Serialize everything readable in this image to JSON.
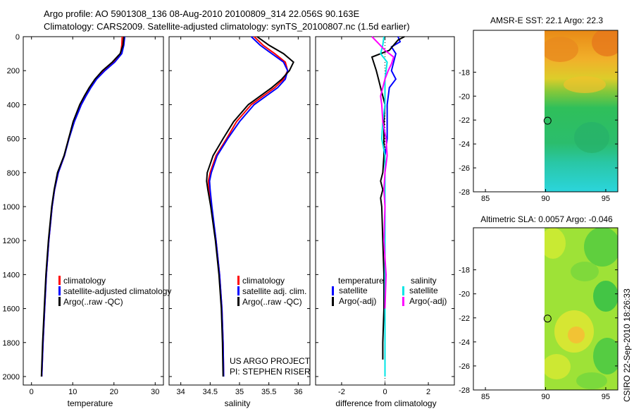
{
  "header": {
    "line1": "Argo profile: AO 5901308_136 08-Aug-2010 20100809_314 22.056S 90.163E",
    "line2": "Climatology: CARS2009. Satellite-adjusted climatology: synTS_20100807.nc (1.5d earlier)"
  },
  "credit": {
    "project": "US ARGO PROJECT",
    "pi": "PI: STEPHEN RISER",
    "stamp": "CSIRO 22-Sep-2010 18:26:33"
  },
  "colors": {
    "climatology": "#ff0000",
    "satellite": "#0000ff",
    "argo": "#000000",
    "sat_sal": "#00e5e5",
    "argo_sal": "#ff00ff"
  },
  "chart_data": [
    {
      "type": "line",
      "name": "temperature-profile",
      "xlabel": "temperature",
      "xlim": [
        -2,
        32
      ],
      "ylim": [
        2050,
        0
      ],
      "xticks": [
        0,
        10,
        20,
        30
      ],
      "yticks": [
        0,
        200,
        400,
        600,
        800,
        1000,
        1200,
        1400,
        1600,
        1800,
        2000
      ],
      "ytick_labels": [
        "0",
        "200",
        "400",
        "600",
        "800",
        "1000",
        "1200",
        "1400",
        "1600",
        "1800",
        "2000"
      ],
      "legend": [
        "climatology",
        "satellite-adjusted climatology",
        "Argo(..raw -QC)"
      ],
      "legend_colors": [
        "#ff0000",
        "#0000ff",
        "#000000"
      ],
      "series": [
        {
          "name": "climatology",
          "color": "#ff0000",
          "depth": [
            0,
            50,
            100,
            150,
            200,
            250,
            300,
            350,
            400,
            500,
            600,
            700,
            800,
            900,
            1000,
            1200,
            1400,
            1600,
            1800,
            2000
          ],
          "values": [
            22.0,
            21.9,
            21.6,
            20.0,
            17.5,
            15.5,
            14.2,
            13.0,
            12.0,
            10.3,
            9.0,
            8.0,
            6.5,
            5.6,
            5.0,
            4.2,
            3.6,
            3.2,
            2.8,
            2.5
          ]
        },
        {
          "name": "satellite-adjusted climatology",
          "color": "#0000ff",
          "depth": [
            0,
            50,
            100,
            150,
            200,
            250,
            300,
            350,
            400,
            500,
            600,
            700,
            800,
            900,
            1000,
            1200,
            1400,
            1600,
            1800,
            2000
          ],
          "values": [
            22.6,
            22.4,
            21.9,
            20.2,
            17.8,
            15.8,
            14.4,
            13.2,
            12.1,
            10.4,
            9.1,
            8.0,
            6.5,
            5.6,
            5.0,
            4.2,
            3.6,
            3.2,
            2.8,
            2.5
          ]
        },
        {
          "name": "Argo(..raw -QC)",
          "color": "#000000",
          "depth": [
            0,
            50,
            100,
            150,
            200,
            250,
            300,
            350,
            400,
            500,
            600,
            700,
            800,
            900,
            1000,
            1200,
            1400,
            1600,
            1800,
            2000
          ],
          "values": [
            22.4,
            22.2,
            21.5,
            19.6,
            17.2,
            15.4,
            14.0,
            12.8,
            11.7,
            10.1,
            9.0,
            7.9,
            6.3,
            5.5,
            4.9,
            4.1,
            3.5,
            3.1,
            2.7,
            2.4
          ]
        }
      ]
    },
    {
      "type": "line",
      "name": "salinity-profile",
      "xlabel": "salinity",
      "xlim": [
        33.8,
        36.2
      ],
      "ylim": [
        2050,
        0
      ],
      "xticks": [
        34,
        34.5,
        35,
        35.5,
        36
      ],
      "xtick_labels": [
        "34",
        "34.5",
        "35",
        "35.5",
        "36"
      ],
      "legend": [
        "climatology",
        "satellite adj. clim.",
        "Argo(..raw -QC)"
      ],
      "legend_colors": [
        "#ff0000",
        "#0000ff",
        "#000000"
      ],
      "series": [
        {
          "name": "climatology",
          "color": "#ff0000",
          "depth": [
            0,
            50,
            100,
            150,
            200,
            250,
            300,
            350,
            400,
            500,
            600,
            700,
            800,
            850,
            900,
            1000,
            1200,
            1400,
            1600,
            1800,
            2000
          ],
          "values": [
            35.25,
            35.4,
            35.6,
            35.78,
            35.82,
            35.75,
            35.6,
            35.4,
            35.2,
            34.95,
            34.78,
            34.6,
            34.5,
            34.47,
            34.48,
            34.52,
            34.6,
            34.66,
            34.7,
            34.72,
            34.73
          ]
        },
        {
          "name": "satellite adj. clim.",
          "color": "#0000ff",
          "depth": [
            0,
            50,
            100,
            150,
            200,
            250,
            300,
            350,
            400,
            500,
            600,
            700,
            800,
            850,
            900,
            1000,
            1200,
            1400,
            1600,
            1800,
            2000
          ],
          "values": [
            35.2,
            35.35,
            35.55,
            35.75,
            35.82,
            35.78,
            35.65,
            35.45,
            35.25,
            35.0,
            34.8,
            34.62,
            34.52,
            34.49,
            34.5,
            34.53,
            34.6,
            34.66,
            34.7,
            34.72,
            34.73
          ]
        },
        {
          "name": "Argo(..raw -QC)",
          "color": "#000000",
          "depth": [
            0,
            50,
            100,
            150,
            200,
            250,
            300,
            350,
            400,
            500,
            600,
            700,
            800,
            850,
            900,
            1000,
            1200,
            1400,
            1600,
            1800,
            2000
          ],
          "values": [
            35.3,
            35.5,
            35.75,
            35.92,
            35.85,
            35.72,
            35.55,
            35.35,
            35.15,
            34.9,
            34.72,
            34.55,
            34.45,
            34.44,
            34.46,
            34.51,
            34.59,
            34.65,
            34.69,
            34.71,
            34.72
          ]
        }
      ]
    },
    {
      "type": "line",
      "name": "difference-profile",
      "xlabel": "difference from climatology",
      "xlim": [
        -3.2,
        3.2
      ],
      "ylim": [
        2050,
        0
      ],
      "xticks": [
        -2,
        0,
        2
      ],
      "legend_groups": [
        {
          "title": "temperature",
          "entries": [
            "satellite",
            "Argo(-adj)"
          ],
          "colors": [
            "#0000ff",
            "#000000"
          ]
        },
        {
          "title": "salinity",
          "entries": [
            "satellite",
            "Argo(-adj)"
          ],
          "colors": [
            "#00e5e5",
            "#ff00ff"
          ]
        }
      ],
      "series": [
        {
          "name": "temperature satellite",
          "color": "#0000ff",
          "depth": [
            0,
            30,
            60,
            100,
            150,
            200,
            250,
            300,
            400,
            500,
            600,
            700,
            800,
            900,
            1000,
            1200,
            1400,
            1600,
            1800,
            2000
          ],
          "values": [
            0.6,
            0.7,
            0.3,
            0.5,
            0.4,
            0.3,
            0.5,
            0.2,
            0.1,
            0.1,
            0.1,
            0.0,
            0.0,
            0.0,
            0.0,
            0.0,
            0.0,
            0.0,
            0.0,
            0.0
          ]
        },
        {
          "name": "temperature Argo(-adj)",
          "color": "#000000",
          "depth": [
            0,
            20,
            50,
            80,
            120,
            160,
            200,
            250,
            300,
            350,
            400,
            500,
            600,
            700,
            800,
            850,
            900,
            950,
            1000,
            1200,
            1400,
            1600,
            1800,
            1900
          ],
          "values": [
            0.9,
            0.6,
            0.4,
            0.2,
            -0.6,
            -0.5,
            -0.4,
            -0.3,
            -0.2,
            -0.1,
            0.0,
            -0.05,
            -0.05,
            -0.05,
            -0.1,
            -0.2,
            -0.1,
            -0.2,
            -0.15,
            -0.1,
            -0.05,
            -0.05,
            -0.1,
            -0.1
          ]
        },
        {
          "name": "salinity satellite",
          "color": "#00e5e5",
          "depth": [
            0,
            50,
            100,
            150,
            200,
            250,
            300,
            400,
            500,
            600,
            700,
            800,
            900,
            1000,
            1200,
            1400,
            1600,
            1800,
            2000
          ],
          "values": [
            -0.05,
            -0.1,
            -0.2,
            0.1,
            0.05,
            0.0,
            0.0,
            0.0,
            -0.1,
            -0.15,
            0.0,
            0.0,
            0.0,
            0.0,
            0.0,
            0.0,
            0.0,
            0.0,
            0.0
          ]
        },
        {
          "name": "salinity Argo(-adj)",
          "color": "#ff00ff",
          "depth": [
            0,
            40,
            80,
            120,
            160,
            200,
            250,
            300,
            350,
            400,
            500,
            600,
            700,
            800,
            900,
            1000,
            1200,
            1400,
            1600
          ],
          "values": [
            -0.6,
            -0.3,
            0.0,
            0.4,
            0.3,
            0.15,
            0.0,
            -0.1,
            -0.2,
            -0.15,
            -0.1,
            0.05,
            0.1,
            0.0,
            -0.05,
            0.0,
            -0.05,
            0.05,
            0.0
          ]
        }
      ]
    },
    {
      "type": "heatmap",
      "name": "sst-map",
      "title": "AMSR-E SST: 22.1 Argo: 22.3",
      "xlim": [
        84,
        96
      ],
      "ylim": [
        -28,
        -14.5
      ],
      "xticks": [
        85,
        90,
        95
      ],
      "yticks": [
        -18,
        -20,
        -22,
        -24,
        -26,
        -28
      ],
      "data_lon_range": [
        90,
        96
      ],
      "argo_position": {
        "lon": 90.163,
        "lat": -22.056
      }
    },
    {
      "type": "heatmap",
      "name": "sla-map",
      "title": "Altimetric SLA: 0.0057 Argo: -0.046",
      "xlim": [
        84,
        96
      ],
      "ylim": [
        -28,
        -14.5
      ],
      "xticks": [
        85,
        90,
        95
      ],
      "yticks": [
        -18,
        -20,
        -22,
        -24,
        -26,
        -28
      ],
      "data_lon_range": [
        90,
        96
      ],
      "argo_position": {
        "lon": 90.163,
        "lat": -22.056
      }
    }
  ]
}
